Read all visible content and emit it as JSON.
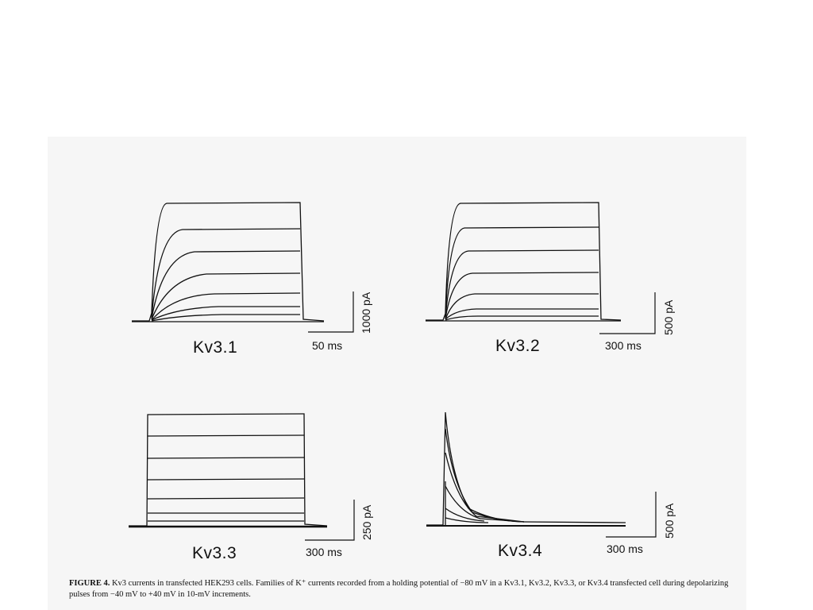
{
  "figure": {
    "panels": [
      {
        "id": "kv31",
        "label": "Kv3.1",
        "time_scale": "50 ms",
        "current_scale": "1000 pA"
      },
      {
        "id": "kv32",
        "label": "Kv3.2",
        "time_scale": "300 ms",
        "current_scale": "500 pA"
      },
      {
        "id": "kv33",
        "label": "Kv3.3",
        "time_scale": "300 ms",
        "current_scale": "250 pA"
      },
      {
        "id": "kv34",
        "label": "Kv3.4",
        "time_scale": "300 ms",
        "current_scale": "500 pA"
      }
    ],
    "caption": {
      "label": "FIGURE 4.",
      "text": "Kv3 currents in transfected HEK293 cells. Families of K⁺ currents recorded from a holding potential of −80 mV in a Kv3.1, Kv3.2, Kv3.3, or Kv3.4 transfected cell during depolarizing pulses from −40 mV to +40 mV in 10-mV increments."
    }
  }
}
